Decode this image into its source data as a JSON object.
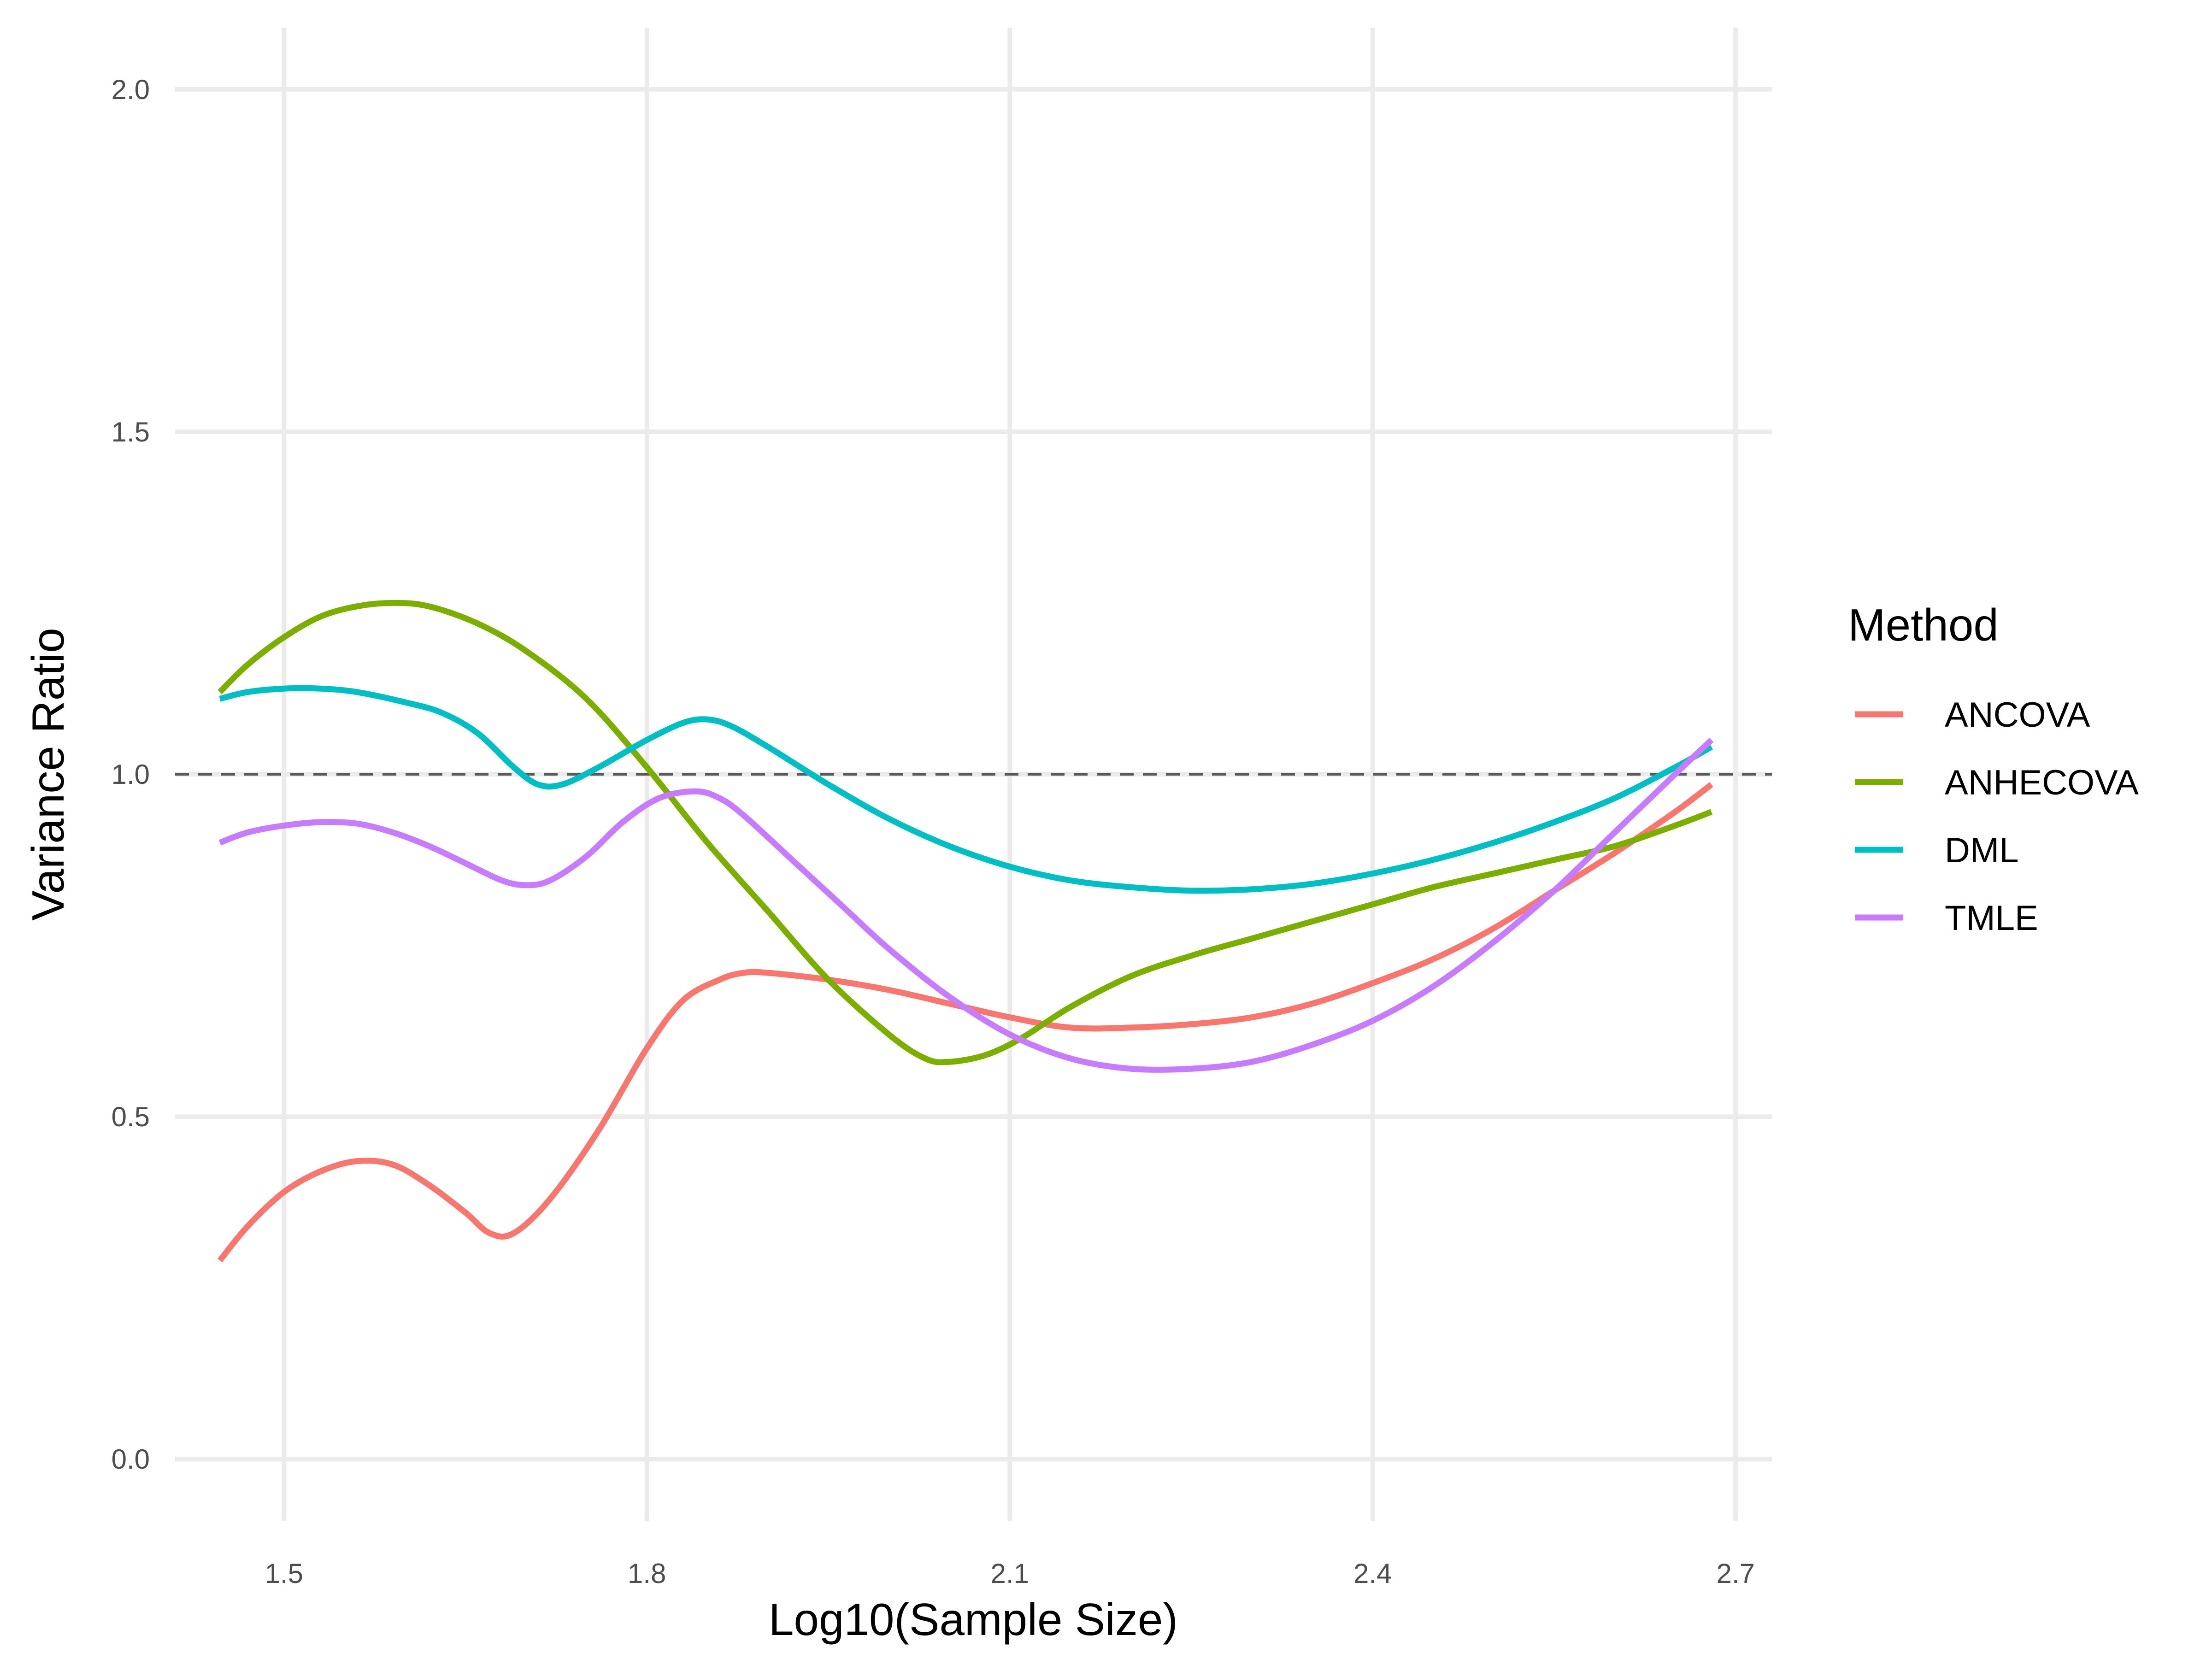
{
  "chart_data": {
    "type": "line",
    "title": "",
    "xlabel": "Log10(Sample Size)",
    "ylabel": "Variance Ratio",
    "xlim": [
      1.41,
      2.73
    ],
    "ylim": [
      -0.09,
      2.09
    ],
    "x_ticks": [
      1.5,
      1.8,
      2.1,
      2.4,
      2.7
    ],
    "x_tick_labels": [
      "1.5",
      "1.8",
      "2.1",
      "2.4",
      "2.7"
    ],
    "y_ticks": [
      0.0,
      0.5,
      1.0,
      1.5,
      2.0
    ],
    "y_tick_labels": [
      "0.0",
      "0.5",
      "1.0",
      "1.5",
      "2.0"
    ],
    "grid": true,
    "reference_line": {
      "y": 1.0,
      "style": "dashed",
      "color": "#595959"
    },
    "legend": {
      "title": "Method",
      "position": "right"
    },
    "series": [
      {
        "name": "ANCOVA",
        "color": "#F8766D",
        "points": [
          [
            1.447,
            0.29
          ],
          [
            1.47,
            0.34
          ],
          [
            1.5,
            0.39
          ],
          [
            1.53,
            0.42
          ],
          [
            1.56,
            0.435
          ],
          [
            1.59,
            0.43
          ],
          [
            1.62,
            0.4
          ],
          [
            1.65,
            0.36
          ],
          [
            1.67,
            0.33
          ],
          [
            1.69,
            0.33
          ],
          [
            1.72,
            0.38
          ],
          [
            1.76,
            0.48
          ],
          [
            1.8,
            0.6
          ],
          [
            1.83,
            0.67
          ],
          [
            1.86,
            0.7
          ],
          [
            1.88,
            0.71
          ],
          [
            1.9,
            0.71
          ],
          [
            1.95,
            0.7
          ],
          [
            2.0,
            0.685
          ],
          [
            2.05,
            0.665
          ],
          [
            2.1,
            0.645
          ],
          [
            2.15,
            0.63
          ],
          [
            2.2,
            0.63
          ],
          [
            2.25,
            0.635
          ],
          [
            2.3,
            0.645
          ],
          [
            2.35,
            0.665
          ],
          [
            2.4,
            0.695
          ],
          [
            2.45,
            0.73
          ],
          [
            2.5,
            0.775
          ],
          [
            2.55,
            0.83
          ],
          [
            2.6,
            0.885
          ],
          [
            2.65,
            0.945
          ],
          [
            2.68,
            0.985
          ]
        ]
      },
      {
        "name": "ANHECOVA",
        "color": "#7CAE00",
        "points": [
          [
            1.447,
            1.12
          ],
          [
            1.47,
            1.16
          ],
          [
            1.5,
            1.2
          ],
          [
            1.53,
            1.23
          ],
          [
            1.56,
            1.245
          ],
          [
            1.59,
            1.25
          ],
          [
            1.62,
            1.245
          ],
          [
            1.66,
            1.22
          ],
          [
            1.7,
            1.18
          ],
          [
            1.75,
            1.11
          ],
          [
            1.8,
            1.01
          ],
          [
            1.85,
            0.9
          ],
          [
            1.9,
            0.8
          ],
          [
            1.95,
            0.7
          ],
          [
            2.0,
            0.62
          ],
          [
            2.03,
            0.585
          ],
          [
            2.05,
            0.58
          ],
          [
            2.08,
            0.59
          ],
          [
            2.11,
            0.615
          ],
          [
            2.15,
            0.66
          ],
          [
            2.2,
            0.705
          ],
          [
            2.25,
            0.735
          ],
          [
            2.3,
            0.76
          ],
          [
            2.35,
            0.785
          ],
          [
            2.4,
            0.81
          ],
          [
            2.45,
            0.835
          ],
          [
            2.5,
            0.855
          ],
          [
            2.55,
            0.875
          ],
          [
            2.6,
            0.895
          ],
          [
            2.65,
            0.925
          ],
          [
            2.68,
            0.945
          ]
        ]
      },
      {
        "name": "DML",
        "color": "#00BFC4",
        "points": [
          [
            1.447,
            1.11
          ],
          [
            1.47,
            1.12
          ],
          [
            1.5,
            1.125
          ],
          [
            1.53,
            1.125
          ],
          [
            1.56,
            1.12
          ],
          [
            1.6,
            1.105
          ],
          [
            1.63,
            1.09
          ],
          [
            1.66,
            1.06
          ],
          [
            1.69,
            1.01
          ],
          [
            1.71,
            0.985
          ],
          [
            1.73,
            0.985
          ],
          [
            1.76,
            1.01
          ],
          [
            1.8,
            1.05
          ],
          [
            1.83,
            1.075
          ],
          [
            1.85,
            1.08
          ],
          [
            1.87,
            1.07
          ],
          [
            1.9,
            1.04
          ],
          [
            1.95,
            0.985
          ],
          [
            2.0,
            0.935
          ],
          [
            2.05,
            0.895
          ],
          [
            2.1,
            0.865
          ],
          [
            2.15,
            0.845
          ],
          [
            2.2,
            0.835
          ],
          [
            2.25,
            0.83
          ],
          [
            2.3,
            0.832
          ],
          [
            2.35,
            0.84
          ],
          [
            2.4,
            0.855
          ],
          [
            2.45,
            0.875
          ],
          [
            2.5,
            0.9
          ],
          [
            2.55,
            0.93
          ],
          [
            2.6,
            0.965
          ],
          [
            2.65,
            1.01
          ],
          [
            2.68,
            1.04
          ]
        ]
      },
      {
        "name": "TMLE",
        "color": "#C77CFF",
        "points": [
          [
            1.447,
            0.9
          ],
          [
            1.47,
            0.915
          ],
          [
            1.5,
            0.925
          ],
          [
            1.53,
            0.93
          ],
          [
            1.56,
            0.928
          ],
          [
            1.59,
            0.915
          ],
          [
            1.62,
            0.895
          ],
          [
            1.65,
            0.87
          ],
          [
            1.68,
            0.845
          ],
          [
            1.7,
            0.838
          ],
          [
            1.72,
            0.845
          ],
          [
            1.75,
            0.88
          ],
          [
            1.78,
            0.93
          ],
          [
            1.81,
            0.965
          ],
          [
            1.84,
            0.975
          ],
          [
            1.86,
            0.965
          ],
          [
            1.88,
            0.94
          ],
          [
            1.92,
            0.875
          ],
          [
            1.96,
            0.81
          ],
          [
            2.0,
            0.745
          ],
          [
            2.05,
            0.675
          ],
          [
            2.1,
            0.62
          ],
          [
            2.15,
            0.585
          ],
          [
            2.2,
            0.57
          ],
          [
            2.25,
            0.57
          ],
          [
            2.3,
            0.58
          ],
          [
            2.35,
            0.605
          ],
          [
            2.4,
            0.64
          ],
          [
            2.45,
            0.69
          ],
          [
            2.5,
            0.755
          ],
          [
            2.55,
            0.83
          ],
          [
            2.6,
            0.915
          ],
          [
            2.65,
            1.0
          ],
          [
            2.68,
            1.05
          ]
        ]
      }
    ]
  }
}
